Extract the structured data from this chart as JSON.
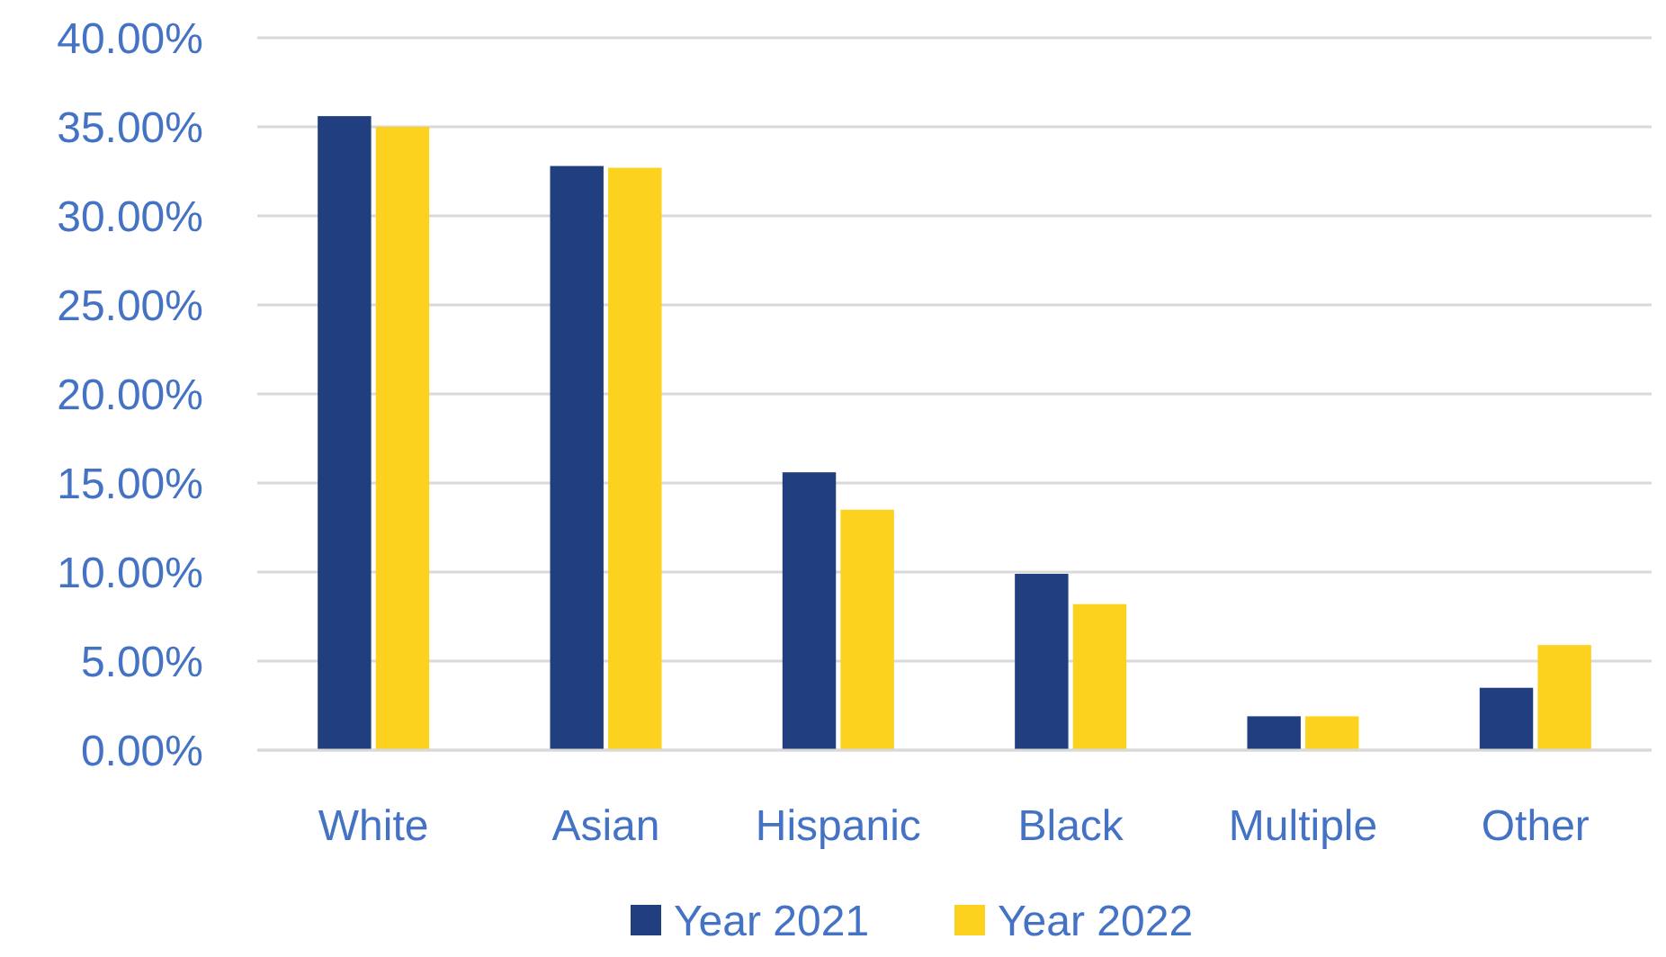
{
  "chart_data": {
    "type": "bar",
    "categories": [
      "White",
      "Asian",
      "Hispanic",
      "Black",
      "Multiple",
      "Other"
    ],
    "series": [
      {
        "name": "Year 2021",
        "color": "#213f7f",
        "values": [
          35.6,
          32.8,
          15.6,
          9.9,
          1.9,
          3.5
        ]
      },
      {
        "name": "Year 2022",
        "color": "#fcd21e",
        "values": [
          35.0,
          32.7,
          13.5,
          8.2,
          1.9,
          5.9
        ]
      }
    ],
    "ylim": [
      0,
      40
    ],
    "yticks": [
      {
        "value": 0,
        "label": "0.00%"
      },
      {
        "value": 5,
        "label": "5.00%"
      },
      {
        "value": 10,
        "label": "10.00%"
      },
      {
        "value": 15,
        "label": "15.00%"
      },
      {
        "value": 20,
        "label": "20.00%"
      },
      {
        "value": 25,
        "label": "25.00%"
      },
      {
        "value": 30,
        "label": "30.00%"
      },
      {
        "value": 35,
        "label": "35.00%"
      },
      {
        "value": 40,
        "label": "40.00%"
      }
    ],
    "grid": "y",
    "legend": "bottom"
  }
}
